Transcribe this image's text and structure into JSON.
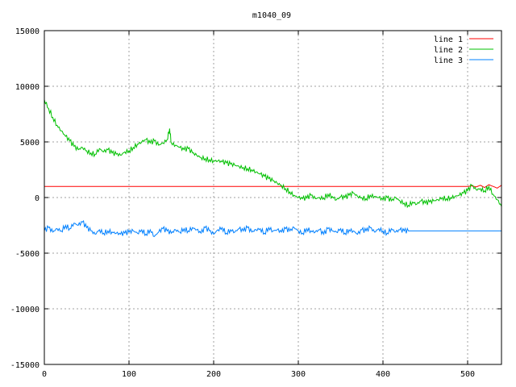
{
  "chart_data": {
    "type": "line",
    "title": "m1040_09",
    "xlabel": "",
    "ylabel": "",
    "xlim": [
      0,
      540
    ],
    "ylim": [
      -15000,
      15000
    ],
    "xticks": [
      0,
      100,
      200,
      300,
      400,
      500
    ],
    "yticks": [
      -15000,
      -10000,
      -5000,
      0,
      5000,
      10000,
      15000
    ],
    "grid": true,
    "legend_position": "top-right",
    "series": [
      {
        "name": "line 1",
        "color": "#ff0000",
        "x": [
          0,
          500,
          505,
          510,
          515,
          520,
          525,
          530,
          535,
          540
        ],
        "y": [
          1000,
          1000,
          1050,
          950,
          1100,
          900,
          1150,
          1000,
          850,
          1100
        ]
      },
      {
        "name": "line 2",
        "color": "#00c000",
        "x": [
          0,
          5,
          10,
          15,
          20,
          25,
          30,
          35,
          40,
          45,
          50,
          55,
          60,
          65,
          70,
          75,
          80,
          85,
          90,
          95,
          100,
          105,
          110,
          115,
          120,
          125,
          130,
          135,
          140,
          145,
          148,
          150,
          155,
          160,
          165,
          170,
          175,
          180,
          185,
          190,
          195,
          200,
          205,
          210,
          215,
          220,
          225,
          230,
          235,
          240,
          245,
          250,
          255,
          260,
          265,
          270,
          275,
          280,
          285,
          290,
          295,
          300,
          305,
          310,
          315,
          320,
          325,
          330,
          335,
          340,
          345,
          350,
          355,
          360,
          365,
          370,
          375,
          380,
          385,
          390,
          395,
          400,
          405,
          410,
          415,
          420,
          425,
          430,
          435,
          440,
          445,
          450,
          455,
          460,
          465,
          470,
          475,
          480,
          485,
          490,
          495,
          500,
          505,
          510,
          515,
          520,
          525,
          530,
          535,
          540
        ],
        "y": [
          8800,
          8000,
          7200,
          6500,
          6000,
          5500,
          5100,
          4600,
          4300,
          4500,
          4200,
          4000,
          3900,
          4400,
          4100,
          4300,
          4000,
          3900,
          3800,
          4100,
          4200,
          4500,
          4800,
          5000,
          5200,
          4900,
          5100,
          4700,
          4900,
          5200,
          6200,
          4900,
          4700,
          4500,
          4300,
          4400,
          4000,
          3800,
          3600,
          3500,
          3400,
          3300,
          3300,
          3200,
          3100,
          3000,
          2900,
          2800,
          2700,
          2600,
          2500,
          2300,
          2100,
          1900,
          1700,
          1500,
          1300,
          1100,
          800,
          500,
          200,
          0,
          -100,
          -50,
          200,
          -100,
          0,
          -50,
          300,
          100,
          -200,
          50,
          0,
          200,
          400,
          100,
          0,
          -100,
          200,
          100,
          0,
          -200,
          0,
          -300,
          0,
          -300,
          -500,
          -700,
          -400,
          -600,
          -300,
          -500,
          -400,
          -300,
          -200,
          0,
          -100,
          0,
          100,
          200,
          400,
          600,
          1100,
          700,
          800,
          600,
          1000,
          300,
          -200,
          -800
        ]
      },
      {
        "name": "line 3",
        "color": "#0080ff",
        "x": [
          0,
          5,
          10,
          15,
          20,
          25,
          30,
          35,
          40,
          45,
          50,
          55,
          60,
          65,
          70,
          75,
          80,
          85,
          90,
          95,
          100,
          105,
          110,
          115,
          120,
          125,
          130,
          135,
          140,
          145,
          150,
          155,
          160,
          165,
          170,
          175,
          180,
          185,
          190,
          195,
          200,
          205,
          210,
          215,
          220,
          225,
          230,
          235,
          240,
          245,
          250,
          255,
          260,
          265,
          270,
          275,
          280,
          285,
          290,
          295,
          300,
          305,
          310,
          315,
          320,
          325,
          330,
          335,
          340,
          345,
          350,
          355,
          360,
          365,
          370,
          375,
          380,
          385,
          390,
          395,
          400,
          405,
          410,
          415,
          420,
          425,
          430,
          540
        ],
        "y": [
          -3000,
          -2700,
          -3100,
          -2800,
          -3000,
          -2500,
          -2800,
          -2300,
          -2500,
          -2200,
          -2700,
          -3000,
          -3300,
          -2900,
          -3200,
          -3000,
          -3100,
          -3200,
          -3300,
          -3200,
          -3100,
          -3000,
          -3200,
          -2900,
          -3300,
          -2900,
          -3500,
          -3100,
          -2800,
          -3000,
          -3200,
          -2900,
          -3100,
          -2800,
          -3000,
          -2700,
          -2900,
          -3200,
          -2700,
          -3000,
          -3300,
          -2900,
          -2700,
          -3200,
          -2900,
          -3100,
          -2800,
          -3000,
          -2700,
          -3100,
          -2900,
          -2800,
          -3200,
          -2700,
          -3000,
          -2900,
          -3100,
          -2800,
          -3000,
          -2700,
          -3000,
          -3200,
          -2800,
          -3000,
          -3100,
          -2900,
          -3300,
          -2800,
          -3000,
          -3100,
          -2800,
          -3200,
          -2900,
          -3000,
          -3300,
          -2900,
          -3000,
          -2700,
          -3100,
          -2800,
          -3000,
          -3200,
          -2800,
          -3100,
          -2900,
          -3000,
          -3000,
          -3000
        ]
      }
    ]
  }
}
